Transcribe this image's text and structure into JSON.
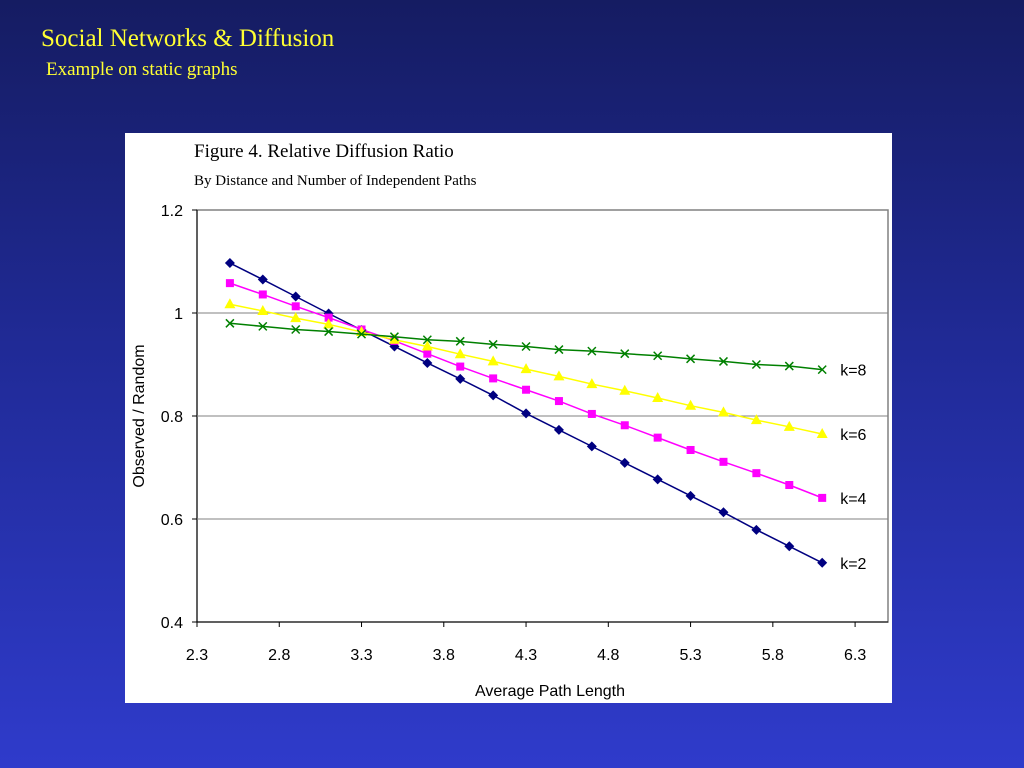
{
  "slide": {
    "title": "Social Networks & Diffusion",
    "subtitle": "Example on static graphs"
  },
  "chart_data": {
    "type": "line",
    "title": "Figure 4. Relative Diffusion Ratio",
    "subtitle": "By Distance and Number of Independent Paths",
    "xlabel": "Average Path Length",
    "ylabel": "Observed / Random",
    "xlim": [
      2.3,
      6.5
    ],
    "ylim": [
      0.4,
      1.2
    ],
    "x_ticks": [
      "2.3",
      "2.8",
      "3.3",
      "3.8",
      "4.3",
      "4.8",
      "5.3",
      "5.8",
      "6.3"
    ],
    "y_ticks": [
      "0.4",
      "0.6",
      "0.8",
      "1",
      "1.2"
    ],
    "grid": "horizontal",
    "x": [
      2.5,
      2.7,
      2.9,
      3.1,
      3.3,
      3.5,
      3.7,
      3.9,
      4.1,
      4.3,
      4.5,
      4.7,
      4.9,
      5.1,
      5.3,
      5.5,
      5.7,
      5.9,
      6.1
    ],
    "series": [
      {
        "name": "k=2",
        "color": "#000080",
        "marker": "diamond",
        "values": [
          1.097,
          1.065,
          1.032,
          0.999,
          0.967,
          0.935,
          0.903,
          0.872,
          0.84,
          0.805,
          0.773,
          0.741,
          0.709,
          0.677,
          0.645,
          0.613,
          0.579,
          0.547,
          0.515
        ]
      },
      {
        "name": "k=4",
        "color": "#ff00ff",
        "marker": "square",
        "values": [
          1.058,
          1.036,
          1.013,
          0.991,
          0.968,
          0.946,
          0.921,
          0.896,
          0.873,
          0.851,
          0.829,
          0.804,
          0.782,
          0.758,
          0.734,
          0.711,
          0.689,
          0.666,
          0.641
        ]
      },
      {
        "name": "k=6",
        "color": "#ffff00",
        "marker": "triangle",
        "values": [
          1.017,
          1.004,
          0.99,
          0.978,
          0.963,
          0.948,
          0.935,
          0.92,
          0.906,
          0.891,
          0.877,
          0.862,
          0.849,
          0.835,
          0.82,
          0.807,
          0.792,
          0.779,
          0.765
        ]
      },
      {
        "name": "k=8",
        "color": "#008000",
        "marker": "x",
        "values": [
          0.98,
          0.974,
          0.968,
          0.964,
          0.959,
          0.954,
          0.948,
          0.945,
          0.939,
          0.935,
          0.929,
          0.926,
          0.921,
          0.917,
          0.911,
          0.906,
          0.9,
          0.897,
          0.89
        ]
      }
    ]
  }
}
